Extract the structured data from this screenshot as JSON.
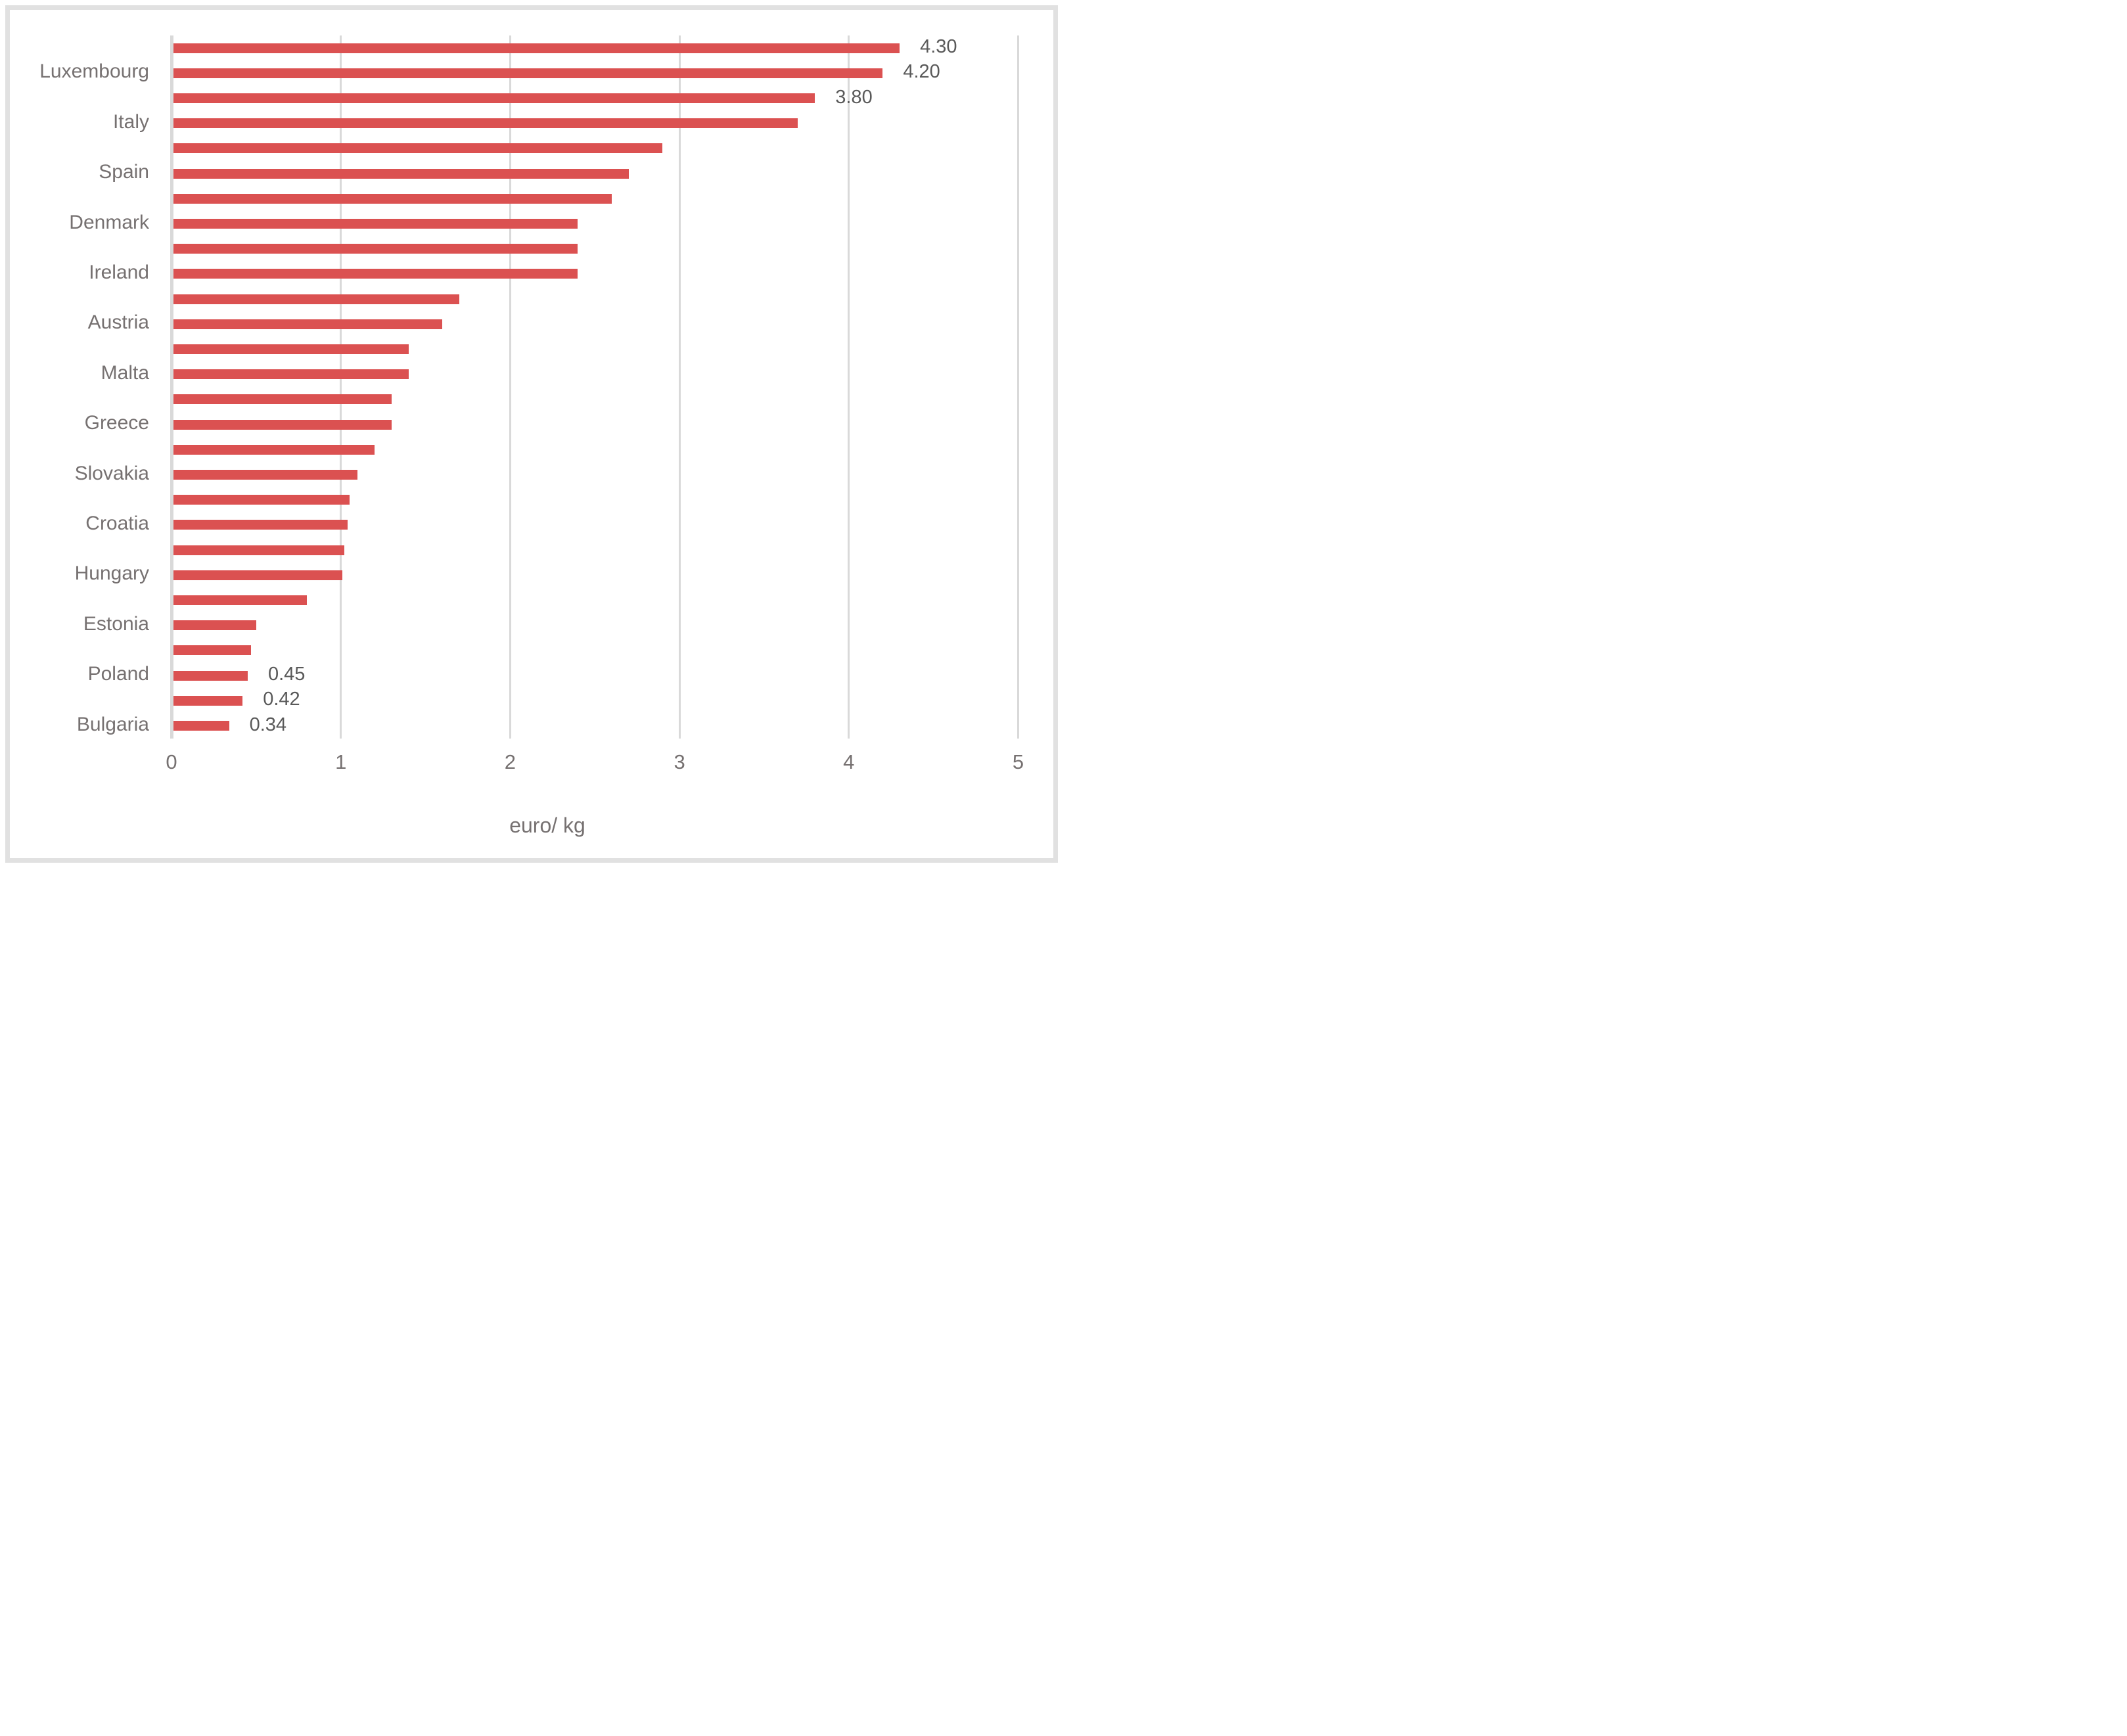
{
  "chart_data": {
    "type": "bar",
    "orientation": "horizontal",
    "xlabel": "euro/ kg",
    "xlim": [
      0,
      5
    ],
    "x_ticks": [
      "0",
      "1",
      "2",
      "3",
      "4",
      "5"
    ],
    "grid": "vertical-only",
    "legend": "none",
    "categories": [
      "",
      "Luxembourg",
      "",
      "Italy",
      "",
      "Spain",
      "",
      "Denmark",
      "",
      "Ireland",
      "",
      "Austria",
      "",
      "Malta",
      "",
      "Greece",
      "",
      "Slovakia",
      "",
      "Croatia",
      "",
      "Hungary",
      "",
      "Estonia",
      "",
      "Poland",
      "",
      "Bulgaria"
    ],
    "values": [
      4.3,
      4.2,
      3.8,
      3.7,
      2.9,
      2.7,
      2.6,
      2.4,
      2.4,
      2.4,
      1.7,
      1.6,
      1.4,
      1.4,
      1.3,
      1.3,
      1.2,
      1.1,
      1.05,
      1.04,
      1.02,
      1.01,
      0.8,
      0.5,
      0.47,
      0.45,
      0.42,
      0.34
    ],
    "data_labels": [
      "4.30",
      "4.20",
      "3.80",
      "",
      "",
      "",
      "",
      "",
      "",
      "",
      "",
      "",
      "",
      "",
      "",
      "",
      "",
      "",
      "",
      "",
      "",
      "",
      "",
      "",
      "",
      "0.45",
      "0.42",
      "0.34"
    ],
    "colors": {
      "bar": "#db5151",
      "label_text": "#767171",
      "value_text": "#595959",
      "gridline": "#d9d9d9",
      "frame": "#e1e1e1"
    }
  }
}
